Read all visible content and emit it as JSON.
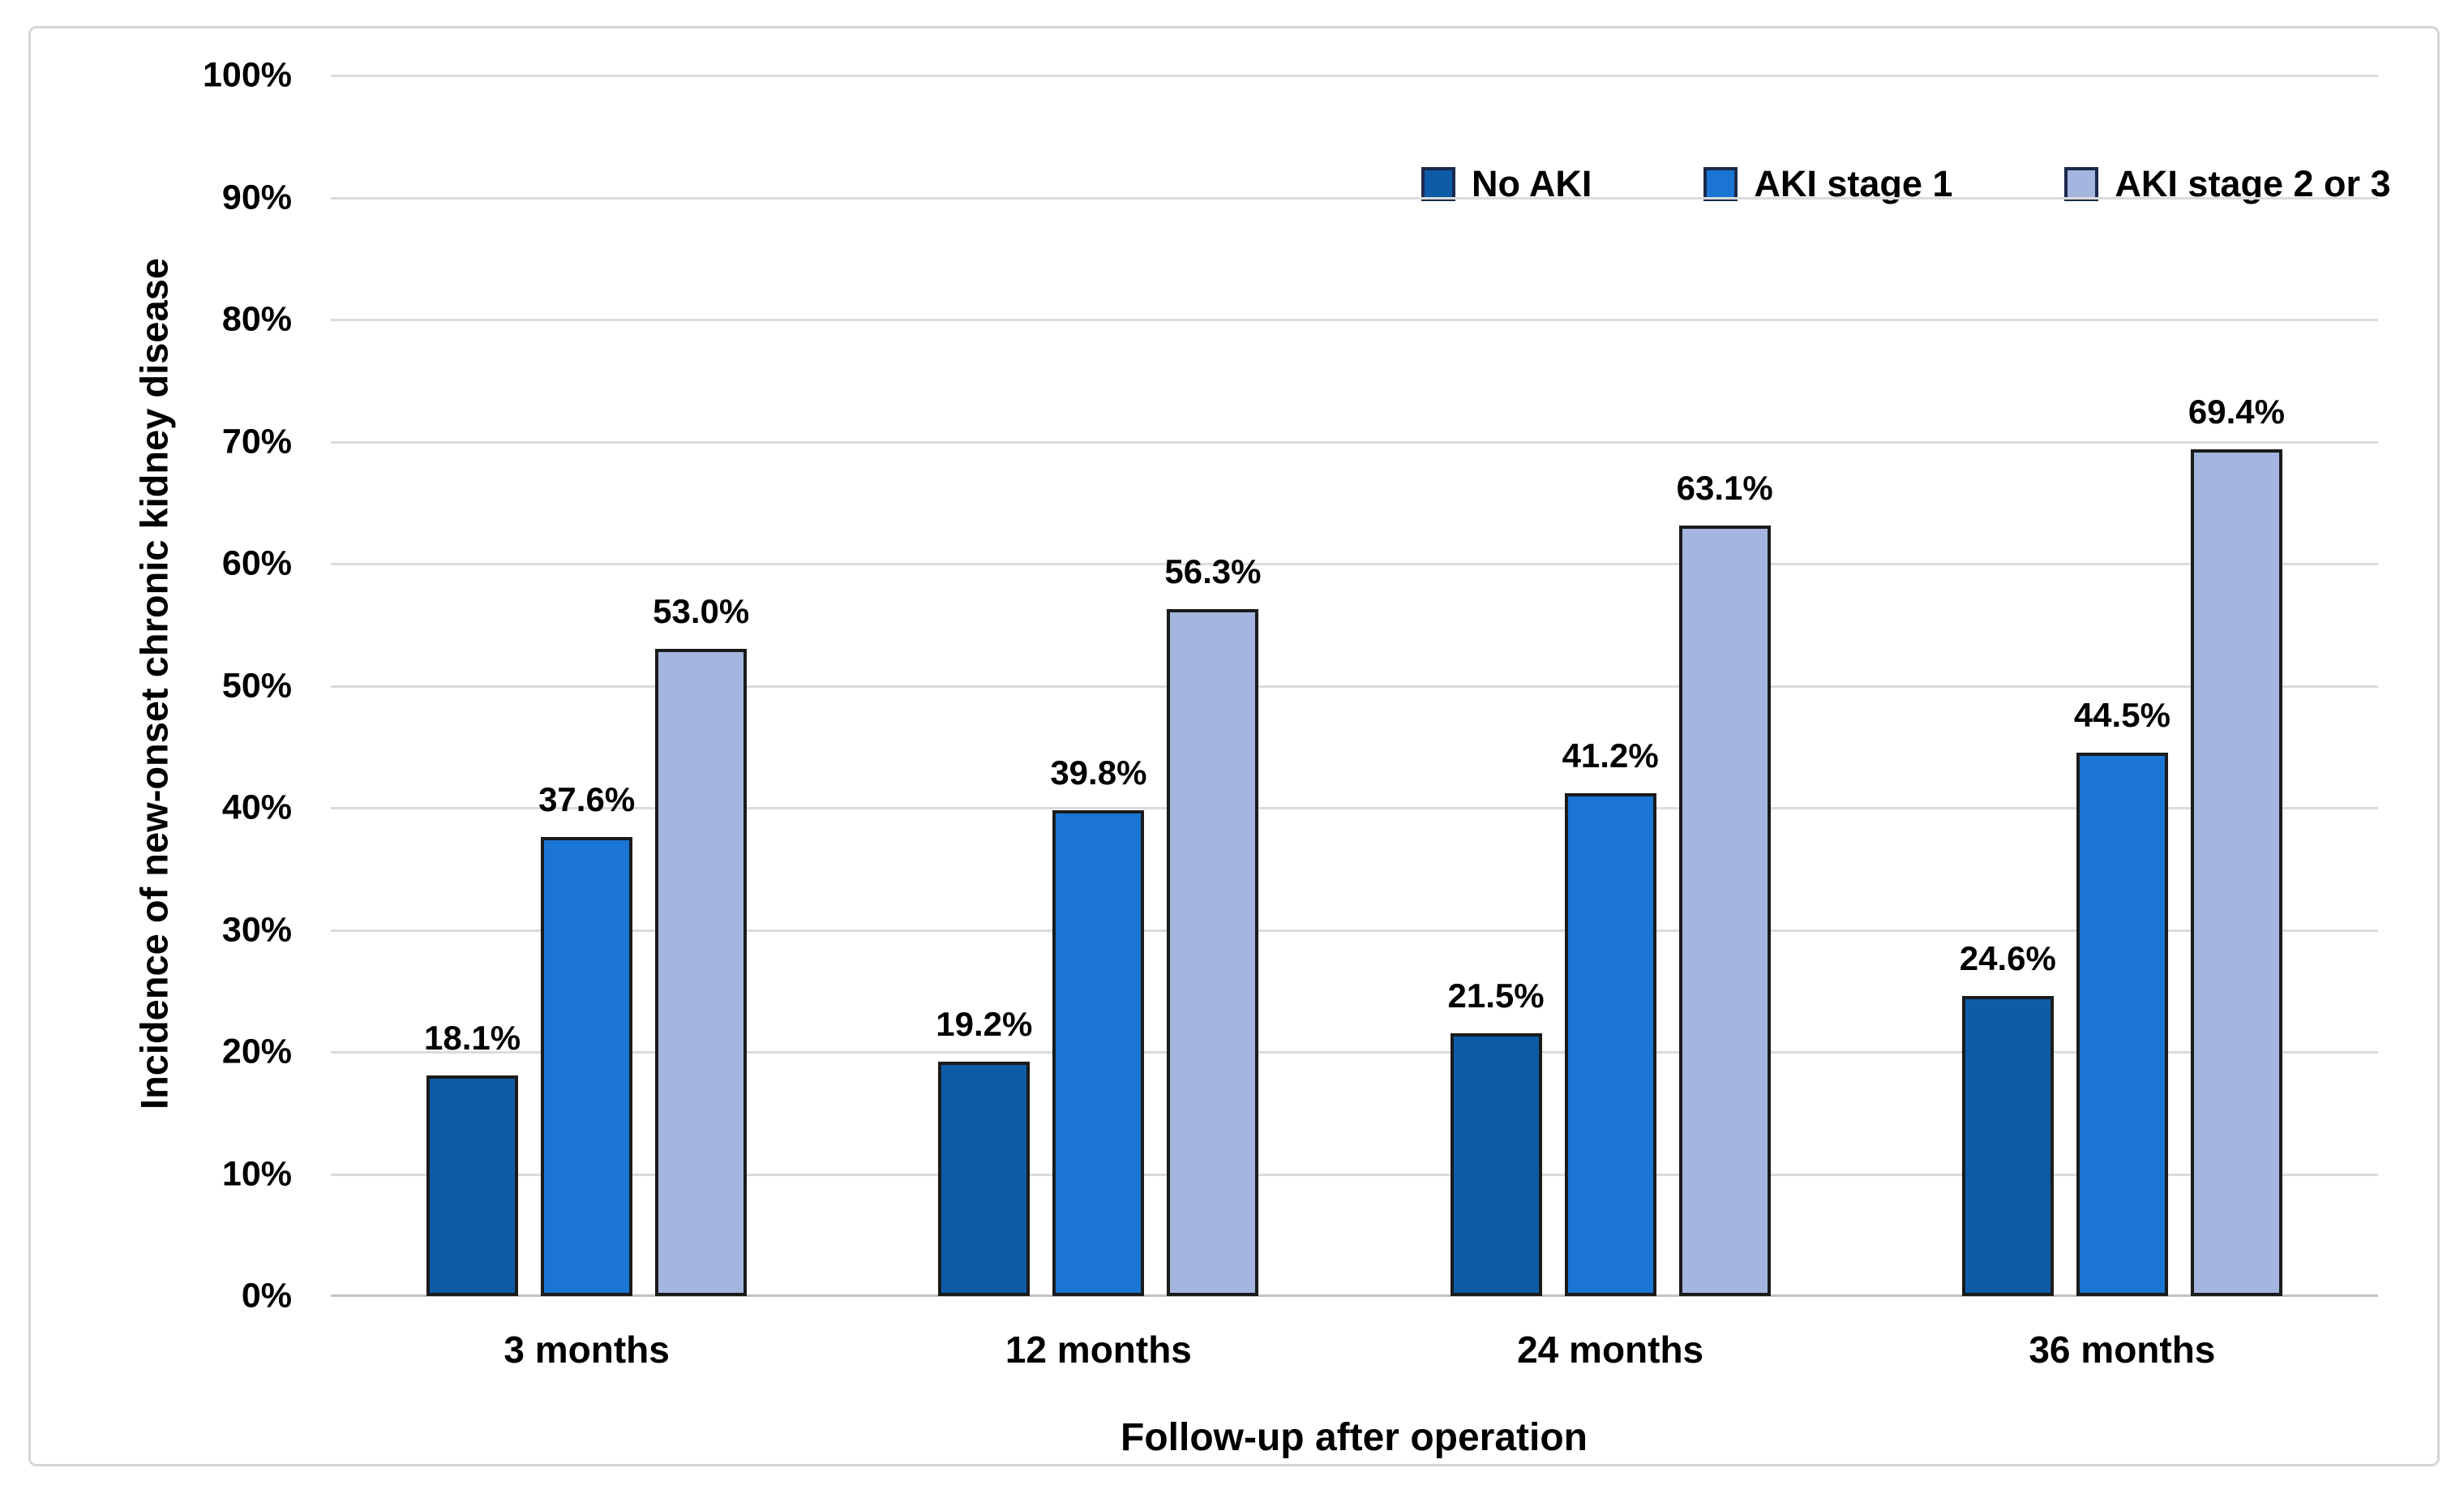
{
  "figure": {
    "background": "#ffffff",
    "border_color": "#d6d6d6",
    "gridline_color": "#dbdbdb",
    "baseline_color": "#c3c3c3",
    "bar_outline_color": "#1b1b1b"
  },
  "chart_data": {
    "type": "bar",
    "xlabel": "Follow-up after operation",
    "ylabel": "Incidence of new-onset chronic kidney disease",
    "categories": [
      "3 months",
      "12 months",
      "24 months",
      "36 months"
    ],
    "series": [
      {
        "name": "No AKI",
        "color": "#0e5ca8",
        "values": [
          18.1,
          19.2,
          21.5,
          24.6
        ],
        "labels": [
          "18.1%",
          "19.2%",
          "21.5%",
          "24.6%"
        ]
      },
      {
        "name": "AKI stage 1",
        "color": "#1b75d4",
        "values": [
          37.6,
          39.8,
          41.2,
          44.5
        ],
        "labels": [
          "37.6%",
          "39.8%",
          "41.2%",
          "44.5%"
        ]
      },
      {
        "name": "AKI stage 2 or 3",
        "color": "#a4b6df",
        "values": [
          53.0,
          56.3,
          63.1,
          69.4
        ],
        "labels": [
          "53.0%",
          "56.3%",
          "63.1%",
          "69.4%"
        ]
      }
    ],
    "y_axis": {
      "min": 0,
      "max": 100,
      "step": 10,
      "tick_labels": [
        "0%",
        "10%",
        "20%",
        "30%",
        "40%",
        "50%",
        "60%",
        "70%",
        "80%",
        "90%",
        "100%"
      ]
    },
    "legend": {
      "position": "top",
      "entries": [
        "No AKI",
        "AKI stage 1",
        "AKI stage 2 or 3"
      ]
    },
    "grid": true
  }
}
